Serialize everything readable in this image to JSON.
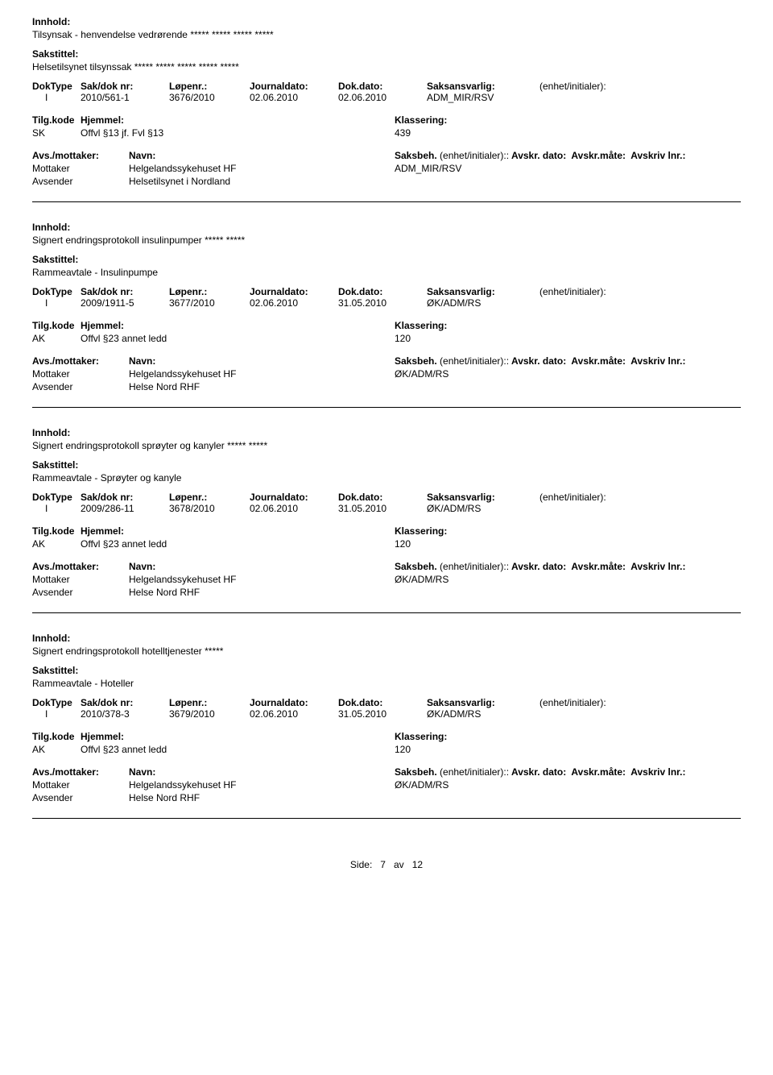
{
  "labels": {
    "innhold": "Innhold:",
    "sakstittel": "Sakstittel:",
    "doktype": "DokType",
    "sakdok": "Sak/dok nr:",
    "lopenr": "Løpenr.:",
    "journaldato": "Journaldato:",
    "dokdato": "Dok.dato:",
    "saksansvarlig": "Saksansvarlig:",
    "enhet": "(enhet/initialer):",
    "tilgkode": "Tilg.kode",
    "hjemmel": "Hjemmel:",
    "klassering": "Klassering:",
    "avsmottaker": "Avs./mottaker:",
    "navn": "Navn:",
    "saksbeh": "Saksbeh.",
    "avskr_dato": "Avskr. dato:",
    "avskr_mate": "Avskr.måte:",
    "avskriv_lnr": "Avskriv lnr.:",
    "mottaker": "Mottaker",
    "avsender": "Avsender"
  },
  "records": [
    {
      "innhold": "Tilsynsak - henvendelse vedrørende ***** ***** ***** *****",
      "sakstittel": "Helsetilsynet tilsynssak ***** ***** ***** ***** *****",
      "doktype": "I",
      "sakdok": "2010/561-1",
      "lopenr": "3676/2010",
      "journaldato": "02.06.2010",
      "dokdato": "02.06.2010",
      "saksansvarlig": "ADM_MIR/RSV",
      "tilgkode": "SK",
      "hjemmel": "Offvl §13 jf. Fvl §13",
      "klassering": "439",
      "mottaker_navn": "Helgelandssykehuset HF",
      "mottaker_saksbeh": "ADM_MIR/RSV",
      "avsender_navn": "Helsetilsynet i Nordland"
    },
    {
      "innhold": "Signert endringsprotokoll insulinpumper ***** *****",
      "sakstittel": "Rammeavtale - Insulinpumpe",
      "doktype": "I",
      "sakdok": "2009/1911-5",
      "lopenr": "3677/2010",
      "journaldato": "02.06.2010",
      "dokdato": "31.05.2010",
      "saksansvarlig": "ØK/ADM/RS",
      "tilgkode": "AK",
      "hjemmel": "Offvl §23 annet ledd",
      "klassering": "120",
      "mottaker_navn": "Helgelandssykehuset HF",
      "mottaker_saksbeh": "ØK/ADM/RS",
      "avsender_navn": "Helse Nord RHF"
    },
    {
      "innhold": "Signert endringsprotokoll sprøyter og kanyler ***** *****",
      "sakstittel": "Rammeavtale - Sprøyter og kanyle",
      "doktype": "I",
      "sakdok": "2009/286-11",
      "lopenr": "3678/2010",
      "journaldato": "02.06.2010",
      "dokdato": "31.05.2010",
      "saksansvarlig": "ØK/ADM/RS",
      "tilgkode": "AK",
      "hjemmel": "Offvl §23 annet ledd",
      "klassering": "120",
      "mottaker_navn": "Helgelandssykehuset HF",
      "mottaker_saksbeh": "ØK/ADM/RS",
      "avsender_navn": "Helse Nord RHF"
    },
    {
      "innhold": "Signert endringsprotokoll hotelltjenester *****",
      "sakstittel": "Rammeavtale - Hoteller",
      "doktype": "I",
      "sakdok": "2010/378-3",
      "lopenr": "3679/2010",
      "journaldato": "02.06.2010",
      "dokdato": "31.05.2010",
      "saksansvarlig": "ØK/ADM/RS",
      "tilgkode": "AK",
      "hjemmel": "Offvl §23 annet ledd",
      "klassering": "120",
      "mottaker_navn": "Helgelandssykehuset HF",
      "mottaker_saksbeh": "ØK/ADM/RS",
      "avsender_navn": "Helse Nord RHF"
    }
  ],
  "footer": {
    "side_label": "Side:",
    "page": "7",
    "av": "av",
    "total": "12"
  }
}
